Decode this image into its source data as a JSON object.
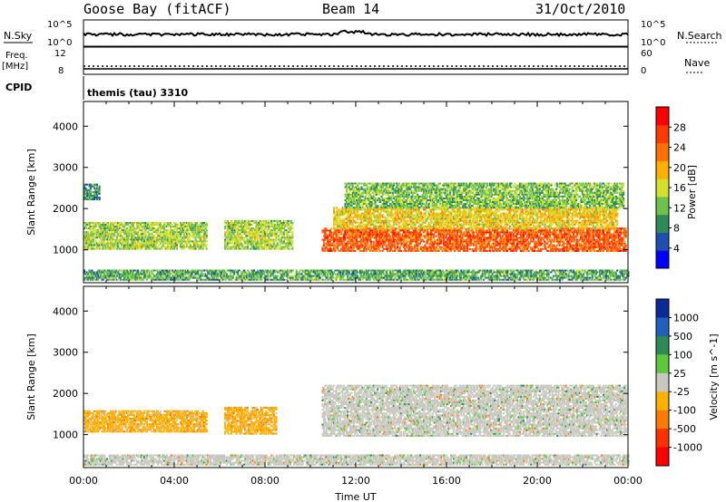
{
  "header": {
    "station": "Goose Bay (fitACF)",
    "beam": "Beam 14",
    "date": "31/Oct/2010"
  },
  "top_panels": {
    "nsky_label": "N.Sky",
    "nsearch_label": "N.Search",
    "nsky_ticks": [
      "10^5",
      "10^0"
    ],
    "nsearch_ticks": [
      "10^5",
      "10^0"
    ],
    "freq_label": "Freq.",
    "freq_unit": "[MHz]",
    "freq_ticks": [
      "12",
      "8"
    ],
    "nave_label": "Nave",
    "nave_ticks": [
      "60",
      "0"
    ],
    "cpid_label": "CPID",
    "cpid_value": "themis (tau) 3310"
  },
  "chart_data": [
    {
      "type": "heatmap",
      "title": "",
      "quantity": "Power",
      "ylabel": "Slant Range [km]",
      "xlabel": "Time UT",
      "x_ticks": [
        "00:00",
        "04:00",
        "08:00",
        "12:00",
        "16:00",
        "20:00",
        "00:00"
      ],
      "y_ticks": [
        1000,
        2000,
        3000,
        4000
      ],
      "ylim": [
        200,
        4600
      ],
      "xlim_hours": [
        0,
        24
      ],
      "colorbar": {
        "label": "Power [dB]",
        "ticks": [
          4,
          8,
          12,
          16,
          20,
          24,
          28
        ],
        "range": [
          0,
          32
        ],
        "colors": [
          "#0000ff",
          "#1c4fb0",
          "#2e8b57",
          "#6cc24a",
          "#d4e02a",
          "#ffb000",
          "#ff7000",
          "#ff3a00",
          "#ff0000"
        ]
      },
      "bands": [
        {
          "t0": 0.0,
          "t1": 5.4,
          "r0": 1000,
          "r1": 1650,
          "level": 14
        },
        {
          "t0": 0.0,
          "t1": 0.7,
          "r0": 2200,
          "r1": 2600,
          "level": 8
        },
        {
          "t0": 6.2,
          "t1": 9.2,
          "r0": 1000,
          "r1": 1700,
          "level": 14
        },
        {
          "t0": 10.5,
          "t1": 23.9,
          "r0": 950,
          "r1": 1500,
          "level": 26
        },
        {
          "t0": 11.0,
          "t1": 23.5,
          "r0": 1500,
          "r1": 2000,
          "level": 18
        },
        {
          "t0": 11.5,
          "t1": 23.8,
          "r0": 2000,
          "r1": 2600,
          "level": 12
        },
        {
          "t0": 0.0,
          "t1": 24.0,
          "r0": 250,
          "r1": 500,
          "level": 10
        }
      ]
    },
    {
      "type": "heatmap",
      "title": "",
      "quantity": "Velocity",
      "ylabel": "Slant Range [km]",
      "xlabel": "Time UT",
      "x_ticks": [
        "00:00",
        "04:00",
        "08:00",
        "12:00",
        "16:00",
        "20:00",
        "00:00"
      ],
      "y_ticks": [
        1000,
        2000,
        3000,
        4000
      ],
      "ylim": [
        200,
        4600
      ],
      "xlim_hours": [
        0,
        24
      ],
      "colorbar": {
        "label": "Velocity [m s^-1]",
        "ticks": [
          "1000",
          "500",
          "100",
          "25",
          "-25",
          "-100",
          "-500",
          "-1000"
        ],
        "colors": [
          "#0b2a9a",
          "#1f5fbf",
          "#2e8b57",
          "#5cc83a",
          "#c8c8c0",
          "#ffb000",
          "#ff7a00",
          "#ff3000",
          "#ff0000"
        ]
      },
      "bands": [
        {
          "t0": 0.0,
          "t1": 5.4,
          "r0": 1050,
          "r1": 1550,
          "level": "orange"
        },
        {
          "t0": 6.2,
          "t1": 8.5,
          "r0": 1000,
          "r1": 1650,
          "level": "orange"
        },
        {
          "t0": 10.5,
          "t1": 23.9,
          "r0": 950,
          "r1": 2200,
          "level": "grey"
        },
        {
          "t0": 0.0,
          "t1": 24.0,
          "r0": 250,
          "r1": 500,
          "level": "grey"
        }
      ]
    }
  ],
  "footer": {
    "xlabel": "Time UT"
  }
}
